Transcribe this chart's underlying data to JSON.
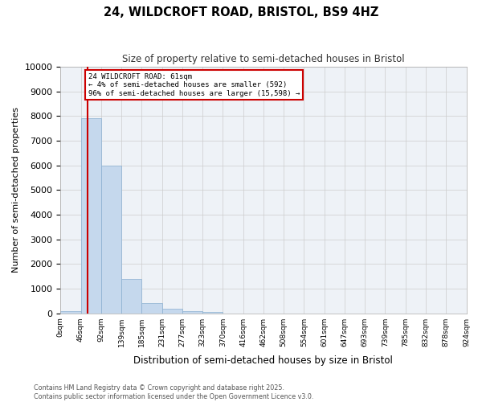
{
  "title_line1": "24, WILDCROFT ROAD, BRISTOL, BS9 4HZ",
  "title_line2": "Size of property relative to semi-detached houses in Bristol",
  "xlabel": "Distribution of semi-detached houses by size in Bristol",
  "ylabel": "Number of semi-detached properties",
  "bar_values": [
    100,
    7900,
    6000,
    1400,
    400,
    200,
    100,
    50,
    0,
    0,
    0,
    0,
    0,
    0,
    0,
    0,
    0,
    0,
    0,
    0
  ],
  "bar_labels": [
    "0sqm",
    "46sqm",
    "92sqm",
    "139sqm",
    "185sqm",
    "231sqm",
    "277sqm",
    "323sqm",
    "370sqm",
    "416sqm",
    "462sqm",
    "508sqm",
    "554sqm",
    "601sqm",
    "647sqm",
    "693sqm",
    "739sqm",
    "785sqm",
    "832sqm",
    "878sqm",
    "924sqm"
  ],
  "bar_color": "#c5d8ed",
  "bar_edge_color": "#8aafd0",
  "property_line_x": 1,
  "property_line_color": "#cc0000",
  "annotation_title": "24 WILDCROFT ROAD: 61sqm",
  "annotation_line1": "← 4% of semi-detached houses are smaller (592)",
  "annotation_line2": "96% of semi-detached houses are larger (15,598) →",
  "annotation_box_color": "#cc0000",
  "ylim": [
    0,
    10000
  ],
  "yticks": [
    0,
    1000,
    2000,
    3000,
    4000,
    5000,
    6000,
    7000,
    8000,
    9000,
    10000
  ],
  "grid_color": "#cccccc",
  "bg_color": "#eef2f7",
  "footer_line1": "Contains HM Land Registry data © Crown copyright and database right 2025.",
  "footer_line2": "Contains public sector information licensed under the Open Government Licence v3.0."
}
